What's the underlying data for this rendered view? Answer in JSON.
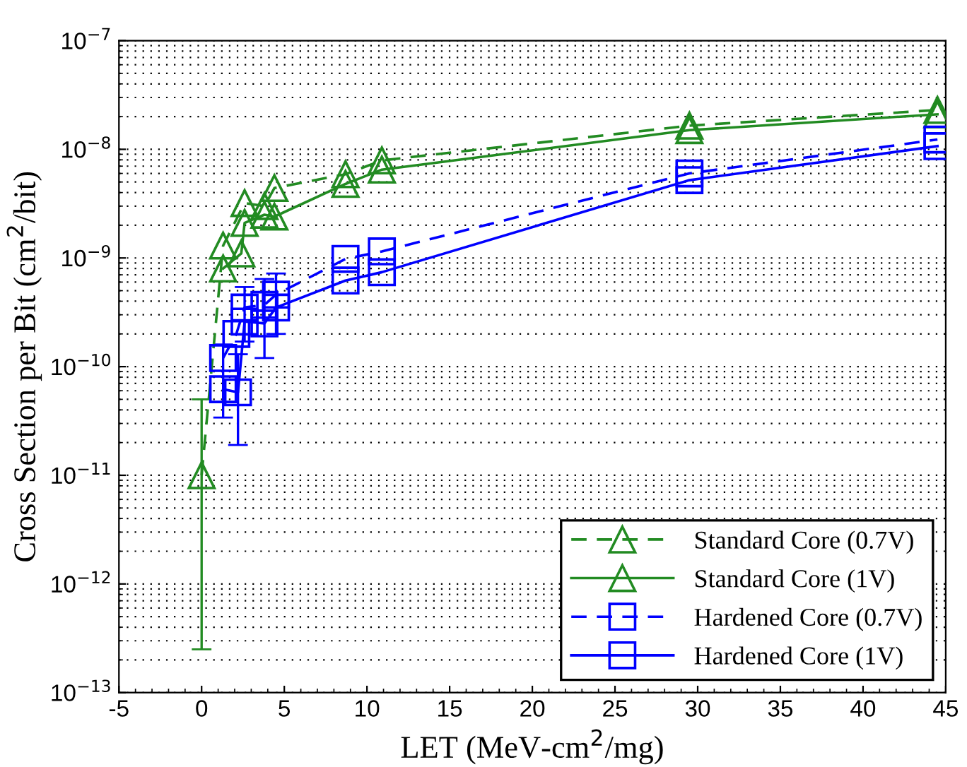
{
  "chart_data": {
    "type": "line",
    "xlabel": "LET (MeV-cm$^{2}$/mg)",
    "ylabel": "Cross Section per Bit (cm$^{2}$/bit)",
    "log": "y",
    "grid": "y",
    "legend": "bottom right",
    "xlim": [
      -5,
      45
    ],
    "xticks": [
      -5,
      0,
      5,
      10,
      15,
      20,
      25,
      30,
      35,
      40,
      45
    ],
    "ylim": [
      1e-13,
      1e-07
    ],
    "yticks": [
      {
        "value": 1e-13,
        "label": "10$^{−13}$"
      },
      {
        "value": 1e-12,
        "label": "10$^{−12}$"
      },
      {
        "value": 1e-11,
        "label": "10$^{−11}$"
      },
      {
        "value": 1e-10,
        "label": "10$^{−10}$"
      },
      {
        "value": 1e-09,
        "label": "10$^{−9}$"
      },
      {
        "value": 1e-08,
        "label": "10$^{−8}$"
      },
      {
        "value": 1e-07,
        "label": "10$^{−7}$"
      }
    ],
    "series": [
      {
        "name": "Standard Core (0.7V)",
        "color": "#228b22",
        "marker": "triangle",
        "line_style": "dashed",
        "x": [
          0,
          1.3,
          2.6,
          3.8,
          4.4,
          8.7,
          10.9,
          29.5,
          44.5
        ],
        "values": [
          1e-11,
          1.3e-09,
          3.2e-09,
          3e-09,
          4.4e-09,
          5.9e-09,
          7.9e-09,
          1.65e-08,
          2.3e-08
        ],
        "errors": [
          [
            2.5e-13,
            5e-11
          ],
          null,
          null,
          null,
          null,
          null,
          null,
          null,
          null
        ]
      },
      {
        "name": "Standard Core (1V)",
        "color": "#228b22",
        "marker": "triangle",
        "line_style": "solid",
        "x": [
          1.3,
          2.4,
          2.6,
          3.8,
          4.4,
          8.7,
          10.9,
          29.5,
          44.5
        ],
        "values": [
          8e-10,
          1.1e-09,
          2.1e-09,
          2.5e-09,
          2.4e-09,
          4.8e-09,
          6.5e-09,
          1.5e-08,
          2.1e-08
        ]
      },
      {
        "name": "Hardened Core (0.7V)",
        "color": "#0000ff",
        "marker": "square",
        "line_style": "dashed",
        "x": [
          1.3,
          2.1,
          2.6,
          3.8,
          4.5,
          8.7,
          10.9,
          29.5,
          44.5
        ],
        "values": [
          1.2e-10,
          2e-10,
          3.5e-10,
          3.7e-10,
          4.6e-10,
          9.8e-10,
          1.15e-09,
          6e-09,
          1.23e-08
        ],
        "errors": [
          [
            3.4e-11,
            1.6e-10
          ],
          null,
          [
            1.7e-10,
            5.4e-10
          ],
          null,
          [
            2e-10,
            7.2e-10
          ],
          null,
          null,
          null,
          null
        ]
      },
      {
        "name": "Hardened Core (1V)",
        "color": "#0000ff",
        "marker": "square",
        "line_style": "solid",
        "x": [
          1.3,
          2.2,
          2.6,
          3.8,
          4.5,
          8.7,
          10.9,
          29.5,
          44.5
        ],
        "values": [
          6.2e-11,
          5.8e-11,
          2.6e-10,
          2.5e-10,
          3.5e-10,
          6.2e-10,
          7.4e-10,
          5.2e-09,
          1.07e-08
        ],
        "errors": [
          null,
          [
            1.9e-11,
            1.3e-10
          ],
          null,
          [
            1.2e-10,
            6.4e-10
          ],
          null,
          null,
          null,
          null,
          null
        ]
      }
    ]
  }
}
